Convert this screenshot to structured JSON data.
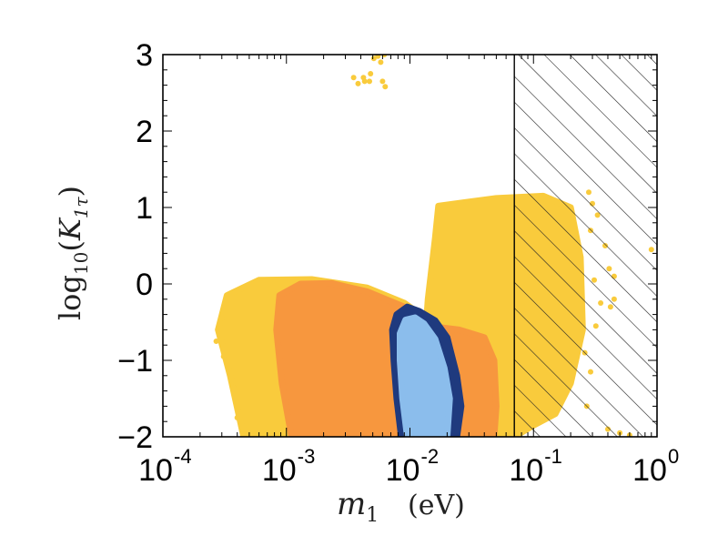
{
  "chart_data": {
    "type": "scatter",
    "title": "",
    "xlabel": {
      "symbol": "m",
      "subscript": "1",
      "unit": "(eV)"
    },
    "ylabel": {
      "prefix": "log",
      "base": "10",
      "arg": "K",
      "arg_subscript": "1τ"
    },
    "x_scale": "log10",
    "xlim": [
      0.0001,
      1
    ],
    "ylim": [
      -2,
      3
    ],
    "x_ticks": [
      {
        "value": 0.0001,
        "base": "10",
        "exp": "-4"
      },
      {
        "value": 0.001,
        "base": "10",
        "exp": "-3"
      },
      {
        "value": 0.01,
        "base": "10",
        "exp": "-2"
      },
      {
        "value": 0.1,
        "base": "10",
        "exp": "-1"
      },
      {
        "value": 1,
        "base": "10",
        "exp": "0"
      }
    ],
    "y_ticks": [
      {
        "value": -2,
        "label": "−2"
      },
      {
        "value": -1,
        "label": "−1"
      },
      {
        "value": 0,
        "label": "0"
      },
      {
        "value": 1,
        "label": "1"
      },
      {
        "value": 2,
        "label": "2"
      },
      {
        "value": 3,
        "label": "3"
      }
    ],
    "excluded_region": {
      "x_from": 0.07,
      "x_to": 1,
      "pattern": "hatched"
    },
    "regions": [
      {
        "name": "yellow",
        "color": "#F9CB3C",
        "outline": [
          [
            0.00045,
            -2
          ],
          [
            0.00035,
            -1.2
          ],
          [
            0.00028,
            -0.6
          ],
          [
            0.00033,
            -0.15
          ],
          [
            0.0006,
            0.05
          ],
          [
            0.0016,
            0.06
          ],
          [
            0.0045,
            -0.05
          ],
          [
            0.009,
            -0.25
          ],
          [
            0.011,
            -0.35
          ],
          [
            0.0135,
            -0.55
          ],
          [
            0.014,
            -0.2
          ],
          [
            0.016,
            0.6
          ],
          [
            0.017,
            1.02
          ],
          [
            0.05,
            1.12
          ],
          [
            0.12,
            1.15
          ],
          [
            0.2,
            1.0
          ],
          [
            0.24,
            0.35
          ],
          [
            0.25,
            -0.6
          ],
          [
            0.2,
            -1.3
          ],
          [
            0.15,
            -1.7
          ],
          [
            0.1,
            -1.85
          ],
          [
            0.07,
            -2
          ]
        ]
      },
      {
        "name": "orange",
        "color": "#F7973E",
        "outline": [
          [
            0.0011,
            -2
          ],
          [
            0.00092,
            -1.3
          ],
          [
            0.00083,
            -0.6
          ],
          [
            0.00088,
            -0.15
          ],
          [
            0.0013,
            0.0
          ],
          [
            0.0023,
            0.01
          ],
          [
            0.0045,
            -0.1
          ],
          [
            0.009,
            -0.3
          ],
          [
            0.014,
            -0.55
          ],
          [
            0.025,
            -0.6
          ],
          [
            0.04,
            -0.7
          ],
          [
            0.048,
            -1.0
          ],
          [
            0.05,
            -1.6
          ],
          [
            0.048,
            -2
          ]
        ]
      },
      {
        "name": "dark-blue",
        "color": "#1F3A7E",
        "outline": [
          [
            0.0085,
            -2
          ],
          [
            0.0078,
            -1.5
          ],
          [
            0.0074,
            -1.0
          ],
          [
            0.0072,
            -0.6
          ],
          [
            0.0078,
            -0.4
          ],
          [
            0.0095,
            -0.3
          ],
          [
            0.012,
            -0.36
          ],
          [
            0.016,
            -0.48
          ],
          [
            0.02,
            -0.7
          ],
          [
            0.024,
            -1.2
          ],
          [
            0.026,
            -1.6
          ],
          [
            0.024,
            -2
          ]
        ]
      },
      {
        "name": "light-blue",
        "color": "#8BBDEC",
        "outline": [
          [
            0.0095,
            -2
          ],
          [
            0.0087,
            -1.5
          ],
          [
            0.0083,
            -1.0
          ],
          [
            0.0083,
            -0.65
          ],
          [
            0.0092,
            -0.47
          ],
          [
            0.011,
            -0.44
          ],
          [
            0.013,
            -0.52
          ],
          [
            0.016,
            -0.72
          ],
          [
            0.019,
            -1.1
          ],
          [
            0.021,
            -1.5
          ],
          [
            0.02,
            -2
          ]
        ]
      }
    ],
    "sparse_points": [
      {
        "color": "#F9CB3C",
        "points": [
          [
            0.0038,
            2.62
          ],
          [
            0.0043,
            2.65
          ],
          [
            0.0048,
            2.75
          ],
          [
            0.0042,
            2.7
          ],
          [
            0.0051,
            2.95
          ],
          [
            0.0055,
            2.98
          ],
          [
            0.0058,
            2.9
          ],
          [
            0.0063,
            2.58
          ],
          [
            0.006,
            2.65
          ],
          [
            0.0035,
            2.7
          ],
          [
            0.0047,
            2.65
          ],
          [
            0.0062,
            3.0
          ]
        ]
      },
      {
        "color": "#F9CB3C",
        "points": [
          [
            0.3,
            1.05
          ],
          [
            0.33,
            0.9
          ],
          [
            0.28,
            1.2
          ],
          [
            0.38,
            0.5
          ],
          [
            0.35,
            -0.25
          ],
          [
            0.32,
            -0.55
          ],
          [
            0.31,
            0.05
          ],
          [
            0.45,
            -0.2
          ],
          [
            0.45,
            0.1
          ],
          [
            0.42,
            -0.3
          ],
          [
            0.9,
            0.45
          ],
          [
            0.29,
            -1.15
          ],
          [
            0.27,
            -1.6
          ],
          [
            0.4,
            -1.9
          ],
          [
            0.5,
            -1.95
          ],
          [
            0.6,
            -1.98
          ],
          [
            0.26,
            -0.9
          ],
          [
            0.29,
            0.7
          ],
          [
            0.41,
            0.2
          ]
        ]
      },
      {
        "color": "#F9CB3C",
        "points": [
          [
            0.00037,
            -1.35
          ],
          [
            0.0004,
            -1.75
          ],
          [
            0.00031,
            -0.95
          ],
          [
            0.00027,
            -0.75
          ],
          [
            0.0003,
            -0.45
          ]
        ]
      }
    ]
  }
}
